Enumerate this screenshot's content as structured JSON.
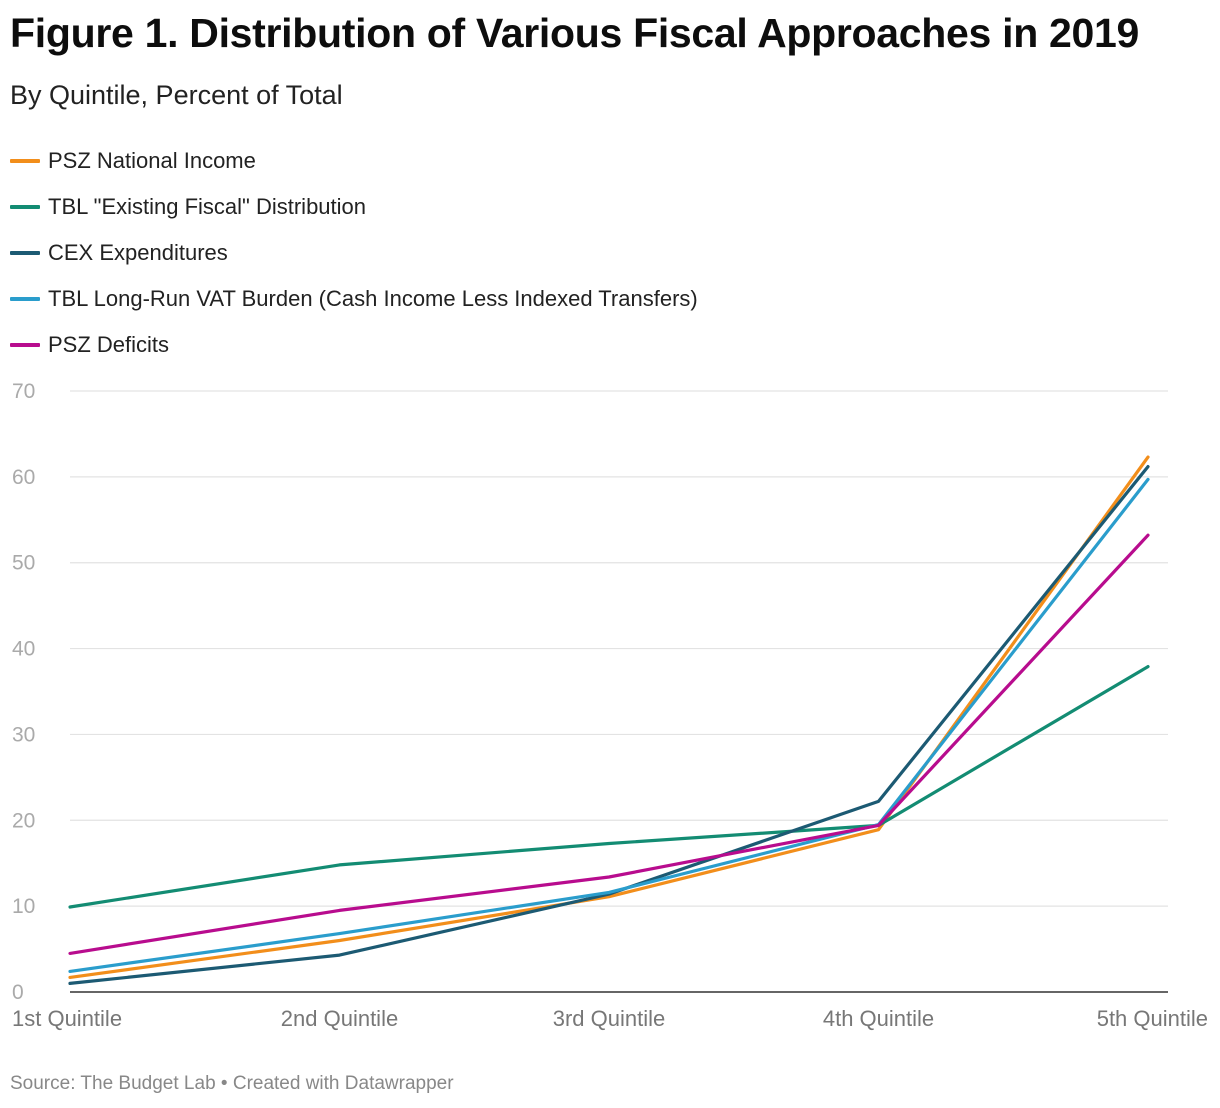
{
  "chart_data": {
    "type": "line",
    "title": "Figure 1. Distribution of Various Fiscal Approaches in 2019",
    "subtitle": "By Quintile, Percent of Total",
    "xlabel": "",
    "ylabel": "",
    "categories": [
      "1st Quintile",
      "2nd Quintile",
      "3rd Quintile",
      "4th Quintile",
      "5th Quintile"
    ],
    "ylim": [
      0,
      70
    ],
    "yticks": [
      0,
      10,
      20,
      30,
      40,
      50,
      60,
      70
    ],
    "grid": true,
    "legend_position": "top-left",
    "series": [
      {
        "name": "PSZ National Income",
        "color": "#f28e1b",
        "values": [
          1.7,
          6.0,
          11.1,
          18.9,
          62.3
        ]
      },
      {
        "name": "TBL \"Existing Fiscal\" Distribution",
        "color": "#138c73",
        "values": [
          9.9,
          14.8,
          17.3,
          19.4,
          37.9
        ]
      },
      {
        "name": "CEX Expenditures",
        "color": "#1c5a73",
        "values": [
          1.0,
          4.3,
          11.4,
          22.2,
          61.2
        ]
      },
      {
        "name": "TBL Long-Run VAT Burden (Cash Income Less Indexed Transfers)",
        "color": "#2a9dcc",
        "values": [
          2.4,
          6.8,
          11.6,
          19.5,
          59.7
        ]
      },
      {
        "name": "PSZ Deficits",
        "color": "#b80c8e",
        "values": [
          4.5,
          9.5,
          13.4,
          19.4,
          53.2
        ]
      }
    ]
  },
  "footer": {
    "source": "Source: The Budget Lab • Created with Datawrapper"
  }
}
